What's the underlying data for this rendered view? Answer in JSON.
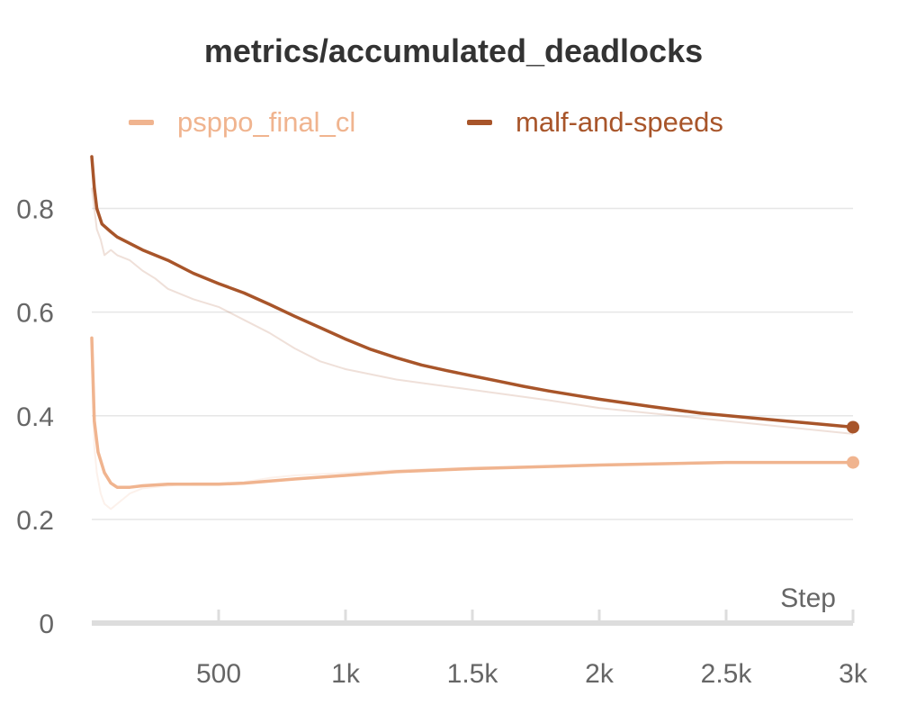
{
  "title": "metrics/accumulated_deadlocks",
  "legend": [
    {
      "name": "psppo_final_cl",
      "color": "#F0B48F"
    },
    {
      "name": "malf-and-speeds",
      "color": "#A8552A"
    }
  ],
  "chart_data": {
    "type": "line",
    "title": "metrics/accumulated_deadlocks",
    "xlabel": "Step",
    "ylabel": "",
    "xlim": [
      0,
      3000
    ],
    "ylim": [
      0,
      0.9
    ],
    "x_ticks": [
      500,
      1000,
      1500,
      2000,
      2500,
      3000
    ],
    "x_tick_labels": [
      "500",
      "1k",
      "1.5k",
      "2k",
      "2.5k",
      "3k"
    ],
    "y_ticks": [
      0,
      0.2,
      0.4,
      0.6,
      0.8
    ],
    "y_tick_labels": [
      "0",
      "0.2",
      "0.4",
      "0.6",
      "0.8"
    ],
    "grid": true,
    "legend_position": "top",
    "series": [
      {
        "name": "psppo_final_cl",
        "color": "#F0B48F",
        "x": [
          0,
          10,
          25,
          50,
          75,
          100,
          150,
          200,
          300,
          500,
          600,
          800,
          1000,
          1200,
          1500,
          2000,
          2500,
          3000
        ],
        "y": [
          0.55,
          0.39,
          0.33,
          0.29,
          0.27,
          0.262,
          0.262,
          0.265,
          0.268,
          0.268,
          0.27,
          0.278,
          0.285,
          0.292,
          0.298,
          0.305,
          0.31,
          0.31
        ]
      },
      {
        "name": "malf-and-speeds",
        "color": "#A8552A",
        "x": [
          0,
          10,
          20,
          40,
          75,
          100,
          200,
          300,
          400,
          500,
          600,
          700,
          800,
          900,
          1000,
          1100,
          1200,
          1300,
          1400,
          1500,
          1600,
          1700,
          1800,
          1900,
          2000,
          2200,
          2400,
          2600,
          2800,
          3000
        ],
        "y": [
          0.9,
          0.84,
          0.8,
          0.77,
          0.755,
          0.745,
          0.72,
          0.7,
          0.675,
          0.655,
          0.637,
          0.615,
          0.592,
          0.57,
          0.548,
          0.528,
          0.512,
          0.498,
          0.487,
          0.477,
          0.467,
          0.457,
          0.448,
          0.44,
          0.432,
          0.418,
          0.405,
          0.396,
          0.387,
          0.378
        ]
      }
    ],
    "raw_series": [
      {
        "name": "psppo_final_cl",
        "color": "#F0B48F",
        "x": [
          0,
          10,
          20,
          35,
          50,
          75,
          100,
          150,
          200,
          300,
          400,
          500,
          600,
          700,
          800,
          1000,
          1200,
          1500,
          2000,
          2500,
          3000
        ],
        "y": [
          0.5,
          0.34,
          0.29,
          0.25,
          0.23,
          0.22,
          0.23,
          0.25,
          0.26,
          0.265,
          0.27,
          0.27,
          0.272,
          0.28,
          0.285,
          0.29,
          0.295,
          0.3,
          0.305,
          0.31,
          0.31
        ]
      },
      {
        "name": "malf-and-speeds",
        "color": "#A8552A",
        "x": [
          0,
          10,
          20,
          35,
          50,
          75,
          100,
          150,
          200,
          250,
          300,
          400,
          500,
          600,
          700,
          800,
          900,
          1000,
          1200,
          1500,
          1800,
          2000,
          2500,
          3000
        ],
        "y": [
          0.84,
          0.8,
          0.76,
          0.74,
          0.71,
          0.72,
          0.71,
          0.7,
          0.68,
          0.665,
          0.645,
          0.625,
          0.61,
          0.585,
          0.56,
          0.53,
          0.505,
          0.49,
          0.47,
          0.45,
          0.43,
          0.415,
          0.39,
          0.365
        ]
      }
    ]
  }
}
